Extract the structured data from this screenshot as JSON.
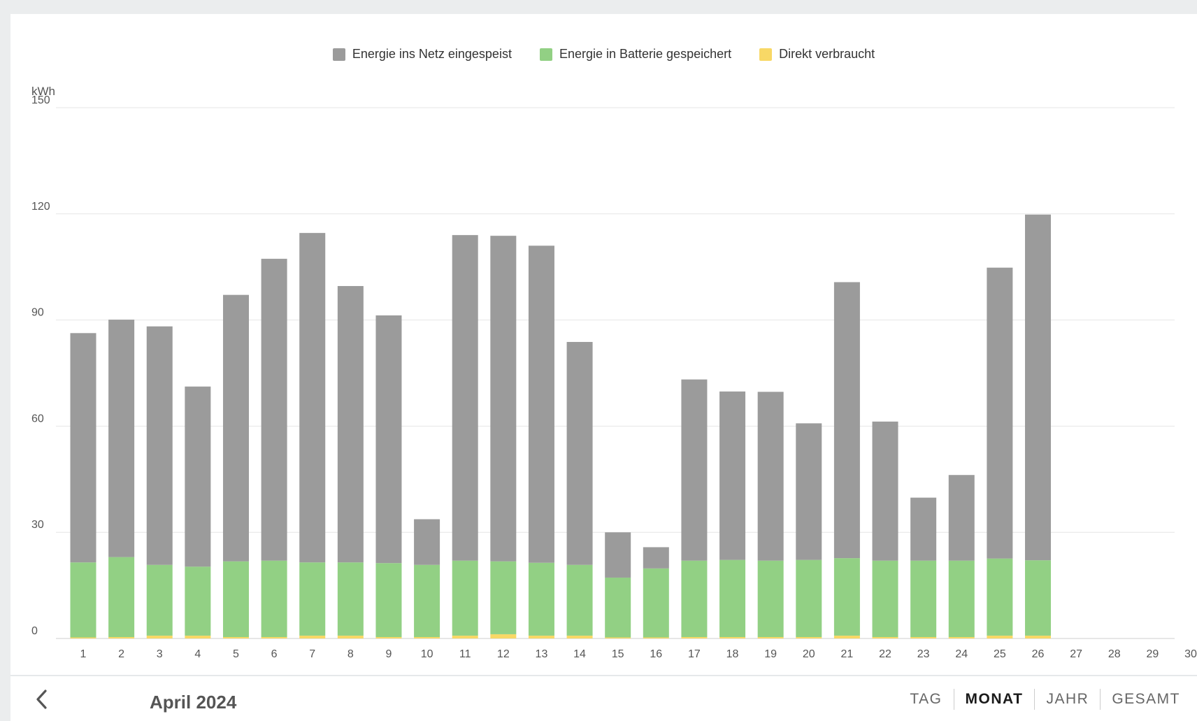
{
  "legend": [
    {
      "label": "Energie ins Netz eingespeist",
      "color": "#9b9b9b"
    },
    {
      "label": "Energie in Batterie gespeichert",
      "color": "#92d084"
    },
    {
      "label": "Direkt verbraucht",
      "color": "#f8d866"
    }
  ],
  "footer": {
    "back_icon": "chevron-left-icon",
    "period_title": "April 2024",
    "tabs": [
      {
        "label": "TAG",
        "active": false
      },
      {
        "label": "MONAT",
        "active": true
      },
      {
        "label": "JAHR",
        "active": false
      },
      {
        "label": "GESAMT",
        "active": false
      }
    ]
  },
  "chart_data": {
    "type": "bar",
    "stacked": true,
    "ylabel": "kWh",
    "ylim": [
      0,
      150
    ],
    "yticks": [
      0,
      30,
      60,
      90,
      120,
      150
    ],
    "grid": true,
    "legend_position": "top-center",
    "categories": [
      "1",
      "2",
      "3",
      "4",
      "5",
      "6",
      "7",
      "8",
      "9",
      "10",
      "11",
      "12",
      "13",
      "14",
      "15",
      "16",
      "17",
      "18",
      "19",
      "20",
      "21",
      "22",
      "23",
      "24",
      "25",
      "26",
      "27",
      "28",
      "29",
      "30"
    ],
    "series": [
      {
        "name": "Direkt verbraucht",
        "color": "#f8d866",
        "values": [
          0.3,
          0.4,
          0.8,
          0.8,
          0.4,
          0.4,
          0.8,
          0.8,
          0.4,
          0.4,
          0.8,
          1.2,
          0.8,
          0.8,
          0.3,
          0.3,
          0.4,
          0.4,
          0.4,
          0.4,
          0.8,
          0.4,
          0.4,
          0.4,
          0.8,
          0.8,
          null,
          null,
          null,
          null
        ]
      },
      {
        "name": "Energie in Batterie gespeichert",
        "color": "#92d084",
        "values": [
          21.2,
          22.6,
          20.0,
          19.5,
          21.4,
          21.6,
          20.7,
          20.7,
          20.9,
          20.4,
          21.2,
          20.6,
          20.6,
          20.0,
          16.9,
          19.5,
          21.6,
          21.8,
          21.6,
          21.8,
          21.9,
          21.6,
          21.6,
          21.6,
          21.8,
          21.3,
          null,
          null,
          null,
          null
        ]
      },
      {
        "name": "Energie ins Netz eingespeist",
        "color": "#9b9b9b",
        "values": [
          64.8,
          67.1,
          67.4,
          50.9,
          75.3,
          85.3,
          93.1,
          78.1,
          70.0,
          12.9,
          92.0,
          92.0,
          89.6,
          63.0,
          12.8,
          6.0,
          51.2,
          47.6,
          47.7,
          38.6,
          78.0,
          39.3,
          17.8,
          24.2,
          82.2,
          97.7,
          null,
          null,
          null,
          null
        ]
      }
    ]
  }
}
